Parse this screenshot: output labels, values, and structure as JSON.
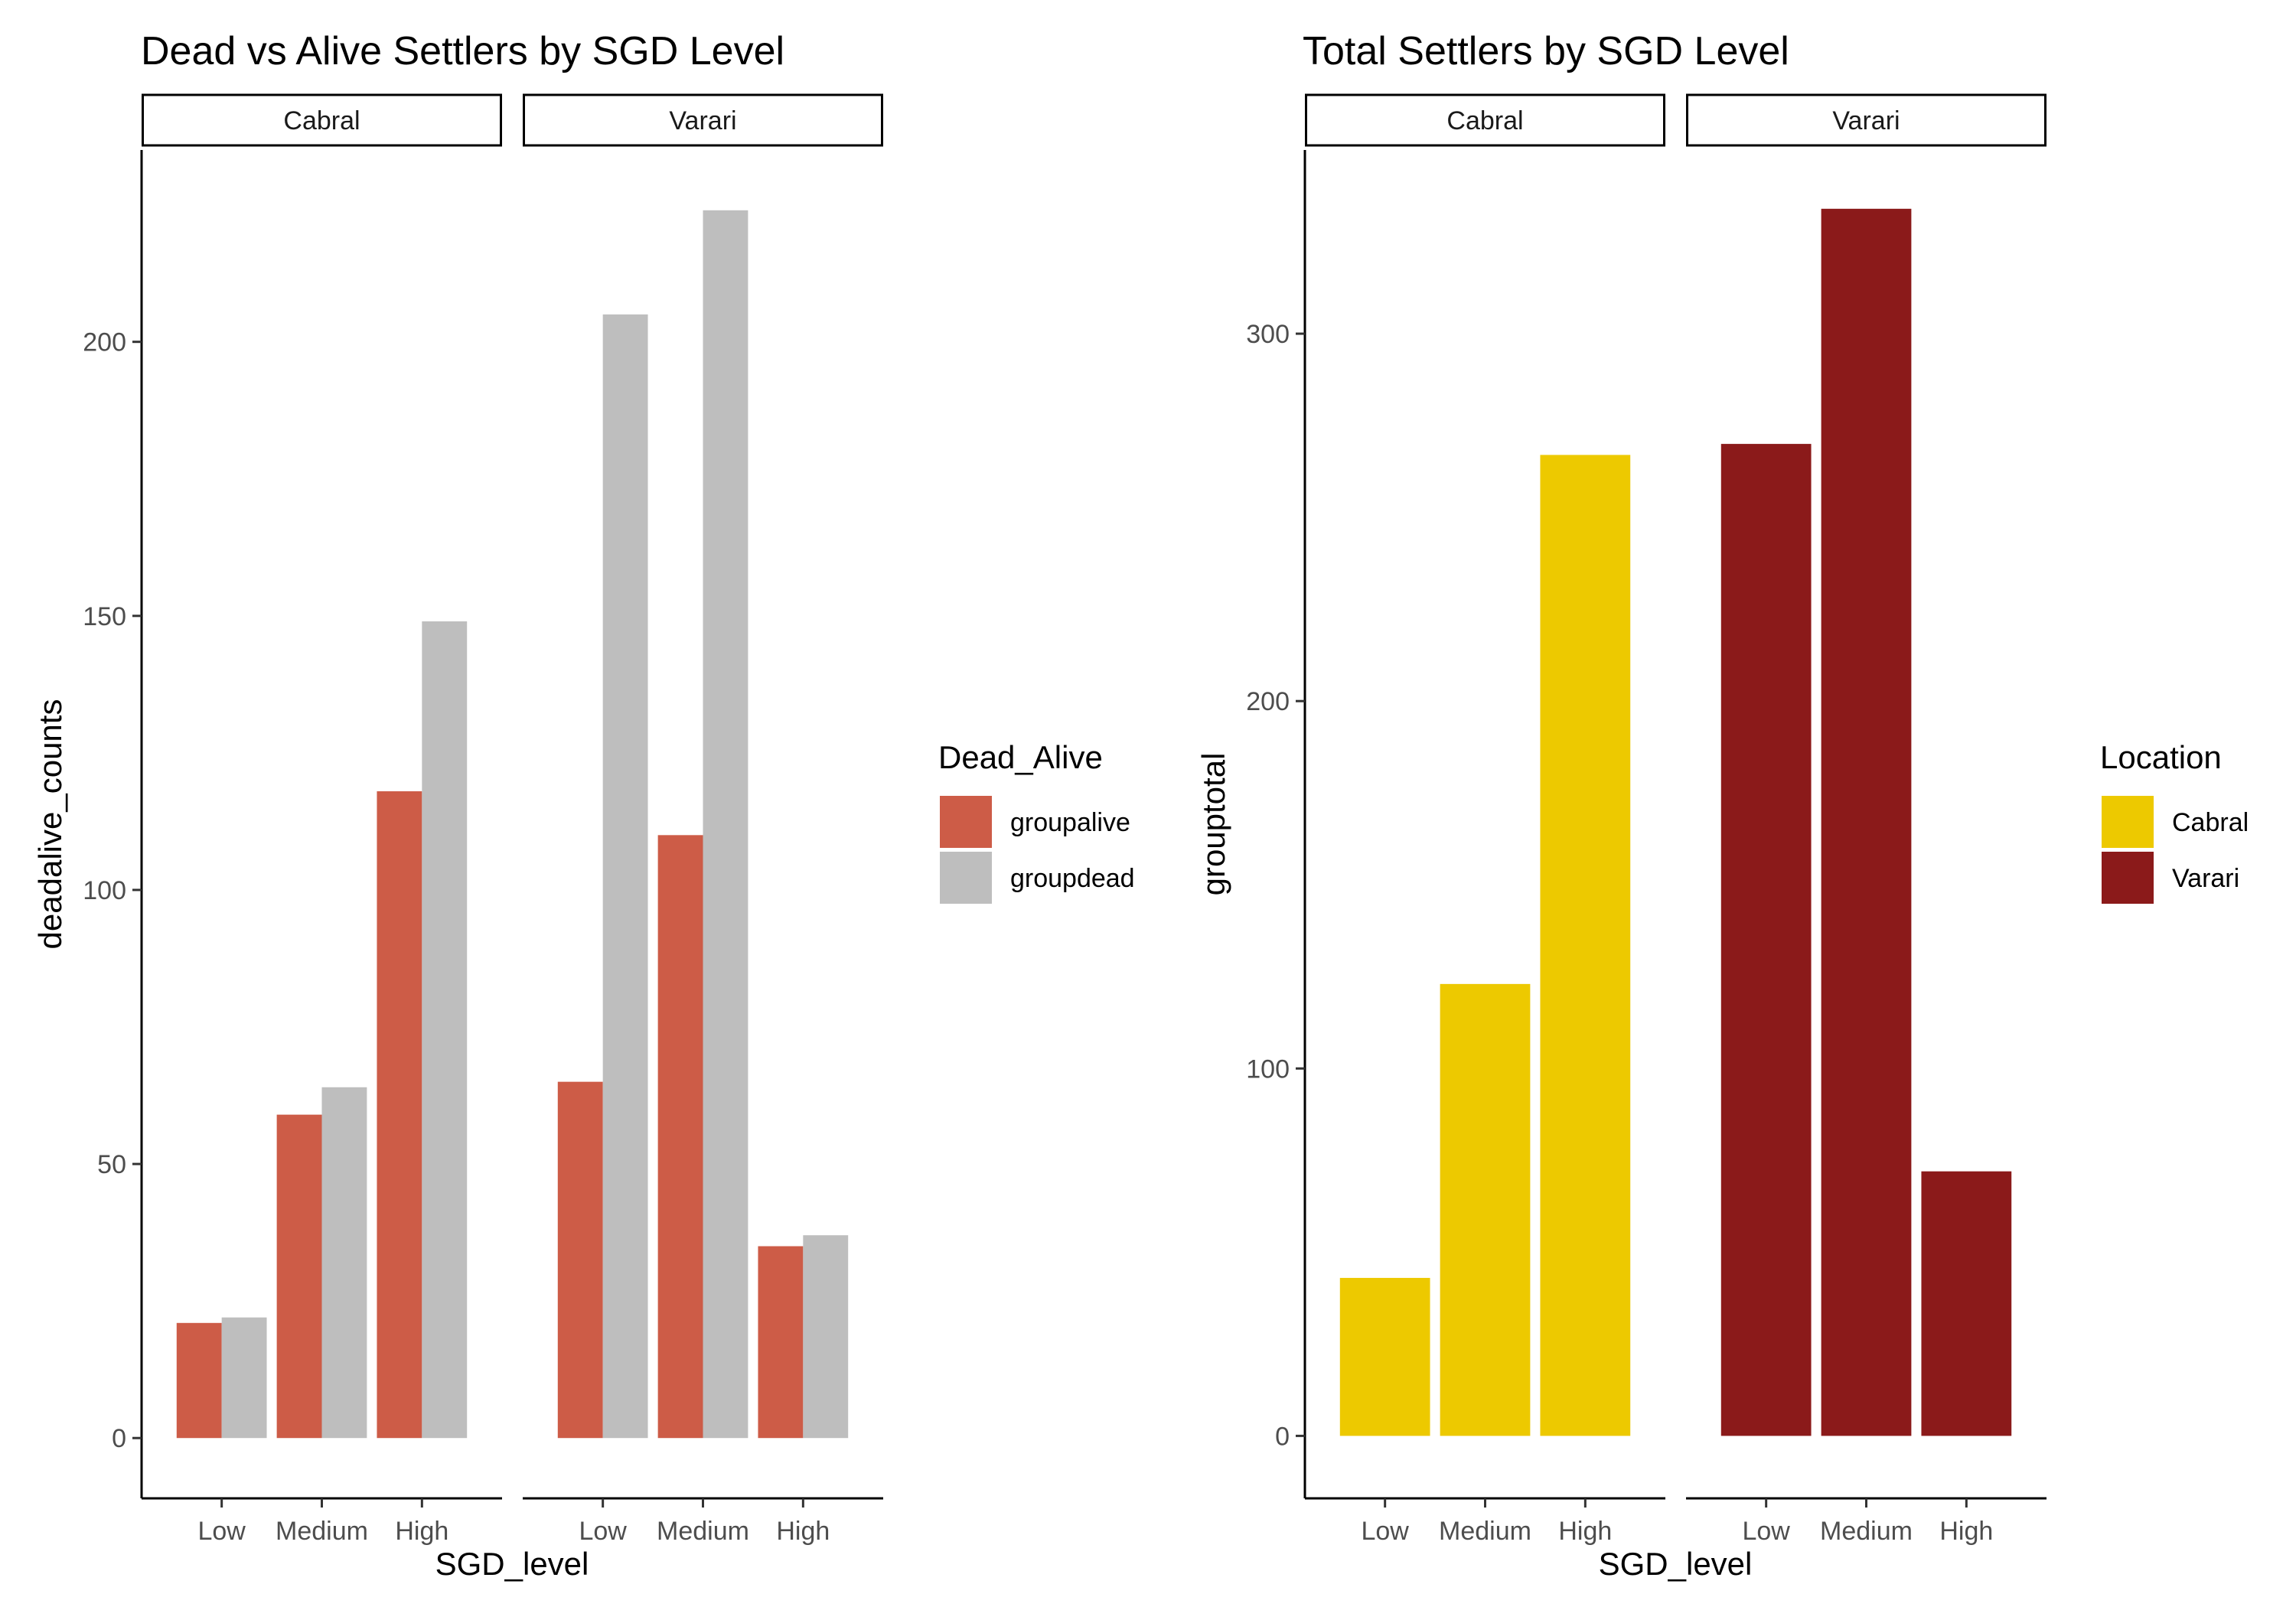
{
  "chart_data": [
    {
      "type": "bar",
      "title": "Dead vs Alive Settlers by SGD Level",
      "xlabel": "SGD_level",
      "ylabel": "deadalive_counts",
      "ylim": [
        -11,
        235
      ],
      "yticks": [
        0,
        50,
        100,
        150,
        200
      ],
      "categories": [
        "Low",
        "Medium",
        "High"
      ],
      "facets": [
        "Cabral",
        "Varari"
      ],
      "series": [
        {
          "name": "groupalive",
          "color": "#CD5C47",
          "values": {
            "Cabral": [
              21,
              59,
              118
            ],
            "Varari": [
              65,
              110,
              35
            ]
          }
        },
        {
          "name": "groupdead",
          "color": "#BEBEBE",
          "values": {
            "Cabral": [
              22,
              64,
              149
            ],
            "Varari": [
              205,
              224,
              37
            ]
          }
        }
      ],
      "legend": {
        "title": "Dead_Alive",
        "position": "right"
      },
      "grid": false
    },
    {
      "type": "bar",
      "title": "Total Settlers by SGD Level",
      "xlabel": "SGD_level",
      "ylabel": "grouptotal",
      "ylim": [
        -17,
        350
      ],
      "yticks": [
        0,
        100,
        200,
        300
      ],
      "categories": [
        "Low",
        "Medium",
        "High"
      ],
      "facets": [
        "Cabral",
        "Varari"
      ],
      "series": [
        {
          "name": "Cabral",
          "color": "#EDC900",
          "values": {
            "Cabral": [
              43,
              123,
              267
            ],
            "Varari": [
              null,
              null,
              null
            ]
          }
        },
        {
          "name": "Varari",
          "color": "#8B1A1A",
          "values": {
            "Cabral": [
              null,
              null,
              null
            ],
            "Varari": [
              270,
              334,
              72
            ]
          }
        }
      ],
      "legend": {
        "title": "Location",
        "position": "right"
      },
      "grid": false
    }
  ]
}
